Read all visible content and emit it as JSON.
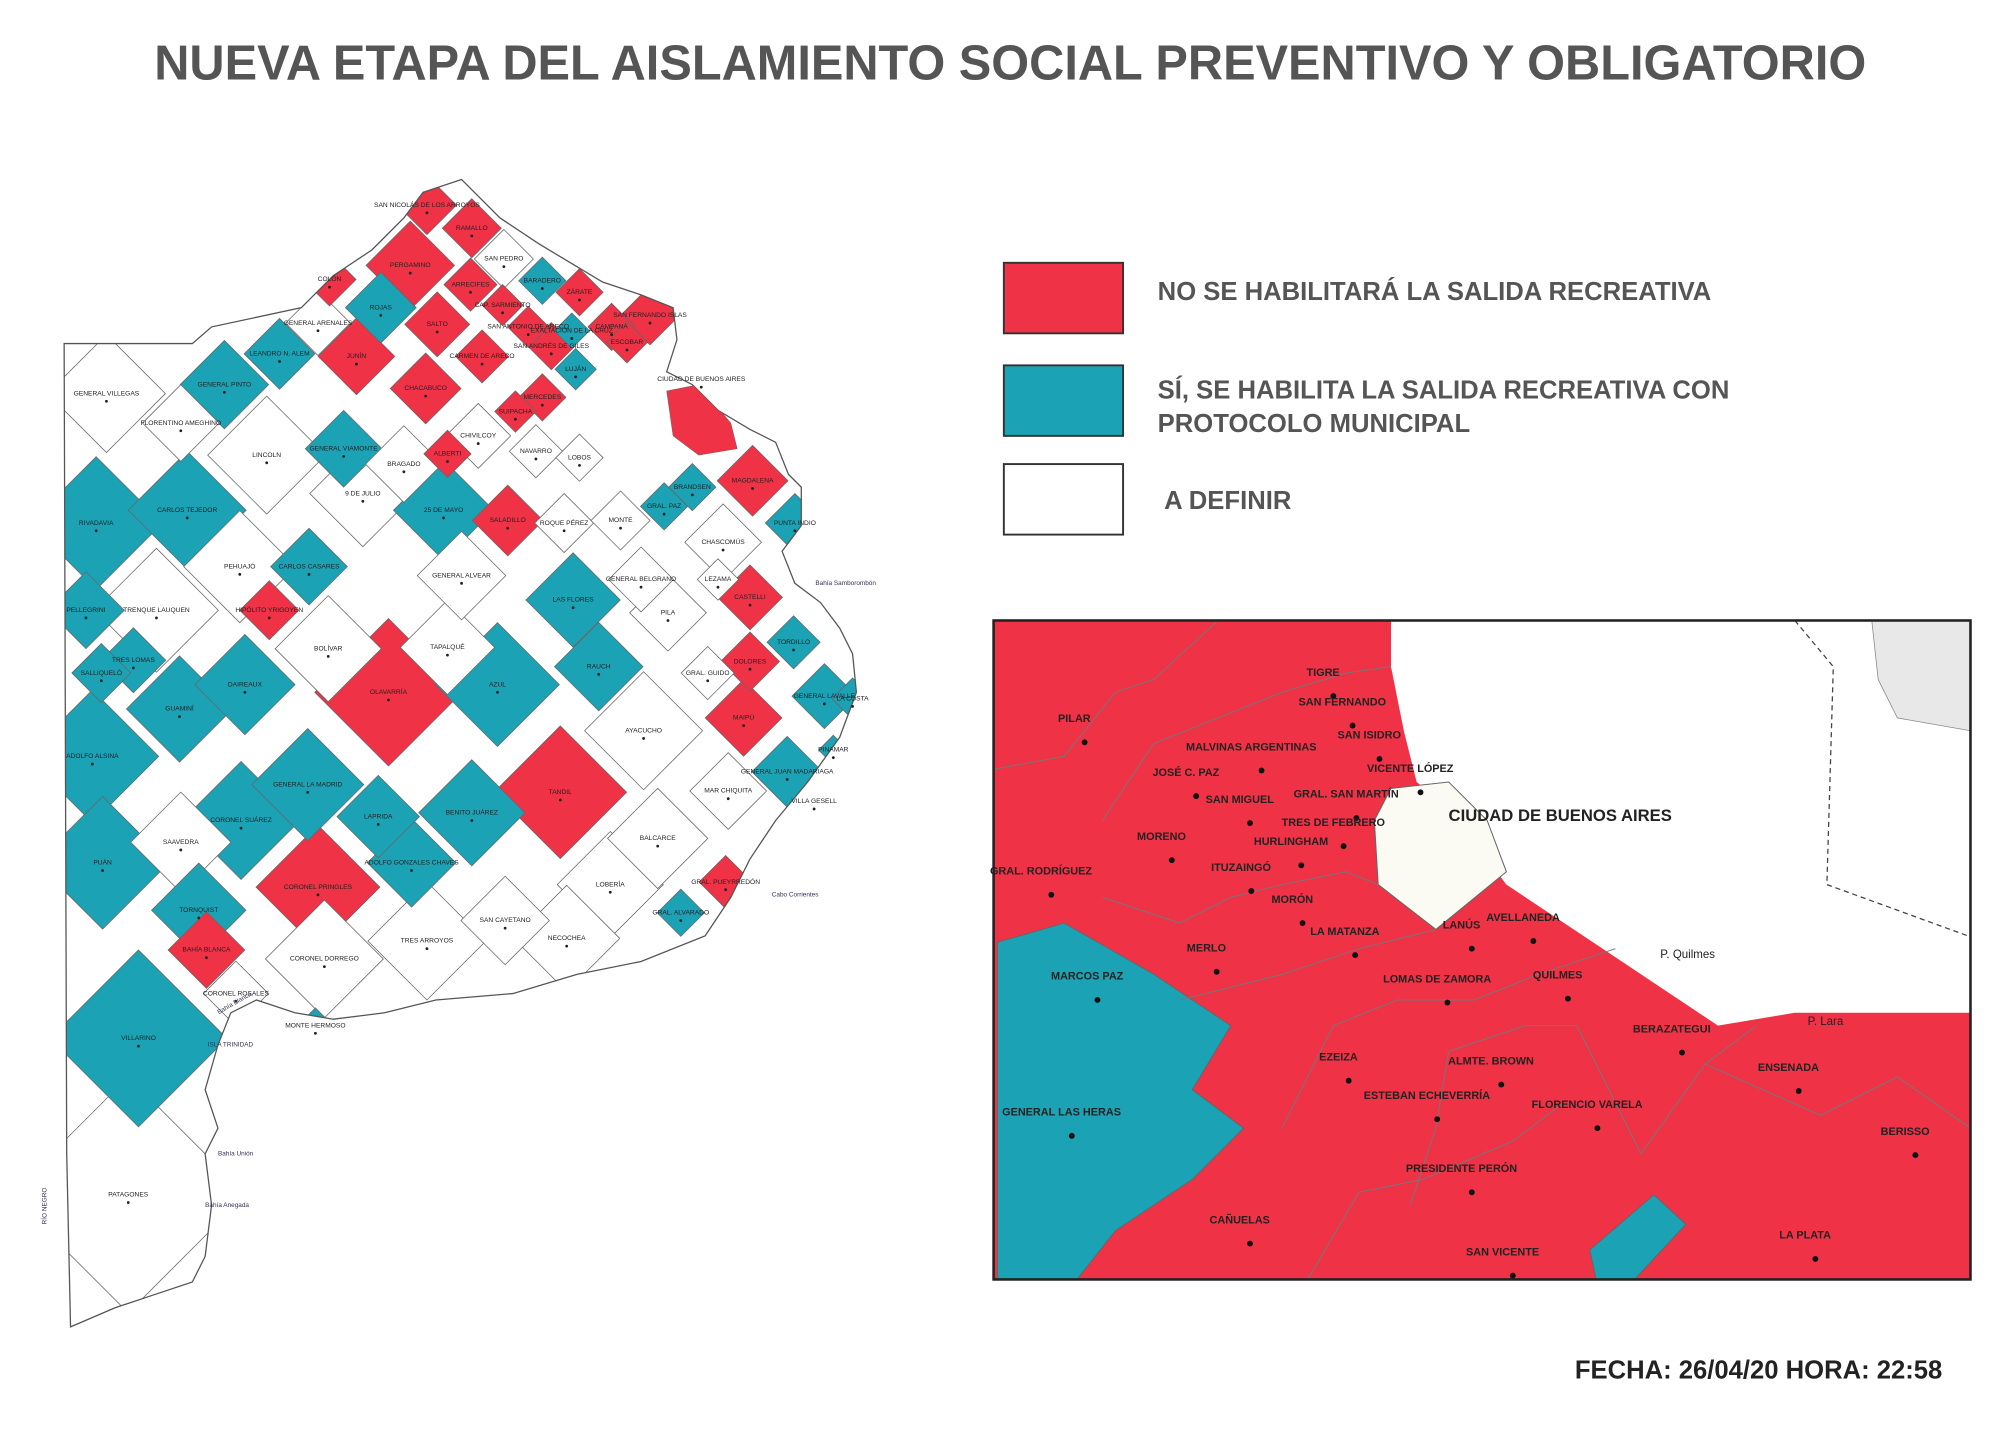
{
  "title": "NUEVA ETAPA DEL AISLAMIENTO SOCIAL PREVENTIVO Y OBLIGATORIO",
  "legend": [
    {
      "label": "NO SE HABILITARÁ LA SALIDA RECREATIVA",
      "color": "#f03246"
    },
    {
      "label": "SÍ, SE HABILITA LA SALIDA RECREATIVA CON PROTOCOLO MUNICIPAL",
      "color": "#1ba3b5"
    },
    {
      "label": "A DEFINIR",
      "color": "#ffffff"
    }
  ],
  "province_map": {
    "groups": [
      [
        "SAN NICOLÁS DE LOS ARROYOS",
        "RAMALLO",
        "PERGAMINO",
        "COLÓN",
        "ARRECIFES",
        "CAP. SARMIENTO",
        "SALTO",
        "SAN ANTONIO DE ARECO",
        "ZÁRATE",
        "SAN FERNANDO ISLAS",
        "CAMPANA",
        "ESCOBAR",
        "SAN ANDRÉS DE GILES",
        "CARMEN DE ARECO",
        "JUNÍN",
        "CHACABUCO",
        "MERCEDES",
        "SUIPACHA",
        "ALBERTI",
        "MAGDALENA",
        "SALADILLO",
        "HIPÓLITO YRIGOYEN",
        "CASTELLI",
        "DOLORES",
        "MAIPÚ",
        "OLAVARRÍA",
        "TANDIL",
        "CORONEL PRINGLES",
        "GRAL. PUEYRREDÓN",
        "BAHÍA BLANCA"
      ],
      [
        "ROJAS",
        "BARADERO",
        "EXALTACIÓN DE LA CRUZ",
        "LUJÁN",
        "LEANDRO N. ALEM",
        "GENERAL PINTO",
        "GENERAL VIAMONTE",
        "RIVADAVIA",
        "CARLOS TEJEDOR",
        "25 DE MAYO",
        "CARLOS CASARES",
        "GRAL. PAZ",
        "BRANDSEN",
        "PUNTA INDIO",
        "LAS FLORES",
        "PELLEGRINI",
        "TRES LOMAS",
        "SALLIQUELÓ",
        "DAIREAUX",
        "GUAMINÍ",
        "AZUL",
        "RAUCH",
        "TORDILLO",
        "GENERAL LAVALLE",
        "LA COSTA",
        "ADOLFO ALSINA",
        "GENERAL LA MADRID",
        "LAPRIDA",
        "BENITO JUÁREZ",
        "CORONEL SUÁREZ",
        "GENERAL JUAN MADARIAGA",
        "PINAMAR",
        "VILLA GESELL",
        "PUÁN",
        "TORNQUIST",
        "ADOLFO GONZALES CHAVES",
        "GRAL. ALVARADO",
        "VILLARINO",
        "MONTE HERMOSO"
      ],
      [
        "SAN PEDRO",
        "GENERAL ARENALES",
        "GENERAL VILLEGAS",
        "FLORENTINO AMEGHINO",
        "LINCOLN",
        "CHIVILCOY",
        "NAVARRO",
        "LOBOS",
        "BRAGADO",
        "9 DE JULIO",
        "ROQUE PÉREZ",
        "MONTE",
        "CHASCOMÚS",
        "PEHUAJÓ",
        "TRENQUE LAUQUEN",
        "GENERAL ALVEAR",
        "GENERAL BELGRANO",
        "LEZAMA",
        "PILA",
        "BOLÍVAR",
        "TAPALQUÉ",
        "GRAL. GUIDO",
        "AYACUCHO",
        "MAR CHIQUITA",
        "SAAVEDRA",
        "BALCARCE",
        "LOBERÍA",
        "SAN CAYETANO",
        "NECOCHEA",
        "TRES ARROYOS",
        "CORONEL DORREGO",
        "CORONEL ROSALES",
        "PATAGONES",
        "CIUDAD DE BUENOS AIRES"
      ]
    ],
    "places": [
      "Bahía Samborombón",
      "RÍO NEGRO",
      "Bahía Blanca",
      "ISLA TRINIDAD",
      "Bahía Unión",
      "Bahía Anegada",
      "Cabo Corrientes"
    ]
  },
  "amba_map": {
    "groups": [
      [
        "TIGRE",
        "SAN FERNANDO",
        "SAN ISIDRO",
        "VICENTE LÓPEZ",
        "MALVINAS ARGENTINAS",
        "JOSÉ C. PAZ",
        "SAN MIGUEL",
        "GRAL. SAN MARTÍN",
        "TRES DE FEBRERO",
        "HURLINGHAM",
        "PILAR",
        "MORENO",
        "GRAL. RODRÍGUEZ",
        "ITUZAINGÓ",
        "MORÓN",
        "LA MATANZA",
        "MERLO",
        "LANÚS",
        "AVELLANEDA",
        "LOMAS DE ZAMORA",
        "QUILMES",
        "BERAZATEGUI",
        "ALMTE. BROWN",
        "EZEIZA",
        "ESTEBAN ECHEVERRÍA",
        "FLORENCIO VARELA",
        "ENSENADA",
        "BERISSO",
        "PRESIDENTE PERÓN",
        "CAÑUELAS",
        "SAN VICENTE",
        "LA PLATA"
      ],
      [
        "MARCOS PAZ",
        "GENERAL LAS HERAS"
      ],
      [
        "CIUDAD DE BUENOS AIRES"
      ]
    ],
    "places": [
      "P. Quilmes",
      "P. Lara"
    ]
  },
  "date": "FECHA: 26/04/20 HORA: 22:58"
}
